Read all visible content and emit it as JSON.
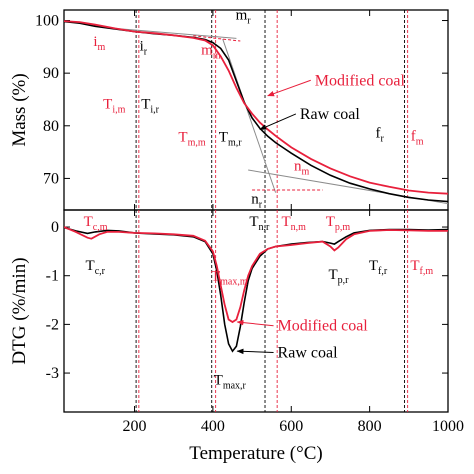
{
  "colors": {
    "raw": "#000000",
    "modified": "#e8203c",
    "fit": "#8c8c8c"
  },
  "chart_data": [
    {
      "type": "line",
      "panel": "top",
      "xlabel": "",
      "ylabel": "Mass (%)",
      "xlim": [
        20,
        1000
      ],
      "ylim": [
        64,
        102
      ],
      "yticks": [
        70,
        80,
        90,
        100
      ],
      "series": [
        {
          "name": "Raw coal",
          "color_key": "raw",
          "x": [
            20,
            60,
            100,
            150,
            200,
            250,
            300,
            350,
            380,
            400,
            420,
            440,
            460,
            480,
            500,
            520,
            540,
            560,
            580,
            600,
            650,
            700,
            750,
            800,
            850,
            900,
            950,
            1000
          ],
          "y": [
            99.8,
            99.5,
            98.9,
            98.4,
            97.9,
            97.5,
            97.2,
            96.8,
            96.4,
            95.8,
            94.7,
            92.5,
            88.5,
            84.5,
            81.5,
            79.5,
            78.0,
            76.8,
            75.8,
            74.8,
            72.5,
            70.6,
            69.1,
            68.0,
            67.1,
            66.4,
            65.9,
            65.6
          ]
        },
        {
          "name": "Modified coal",
          "color_key": "modified",
          "x": [
            20,
            60,
            100,
            150,
            200,
            250,
            300,
            350,
            380,
            400,
            420,
            440,
            460,
            480,
            500,
            520,
            540,
            560,
            580,
            600,
            650,
            700,
            750,
            800,
            850,
            900,
            950,
            1000
          ],
          "y": [
            99.9,
            99.7,
            99.2,
            98.5,
            97.9,
            97.6,
            97.2,
            96.7,
            96.2,
            95.3,
            93.2,
            90.5,
            87.2,
            84.3,
            82.3,
            80.6,
            79.3,
            78.1,
            77.0,
            75.9,
            73.7,
            71.9,
            70.4,
            69.2,
            68.4,
            67.7,
            67.3,
            67.1
          ]
        }
      ],
      "fit_lines": [
        {
          "x": [
            150,
            460
          ],
          "y": [
            98.5,
            96.6
          ]
        },
        {
          "x": [
            425,
            560
          ],
          "y": [
            96.5,
            67.3
          ]
        },
        {
          "x": [
            490,
            1000
          ],
          "y": [
            71.6,
            65.2
          ]
        }
      ],
      "modified_fit_lines": [
        {
          "x": [
            350,
            470
          ],
          "y": [
            97.1,
            96.1
          ]
        },
        {
          "x": [
            500,
            680
          ],
          "y": [
            67.8,
            67.8
          ]
        }
      ],
      "vlines": [
        {
          "x": 204,
          "color_key": "raw"
        },
        {
          "x": 211,
          "color_key": "modified"
        },
        {
          "x": 397,
          "color_key": "raw"
        },
        {
          "x": 407,
          "color_key": "modified"
        },
        {
          "x": 533,
          "color_key": "raw"
        },
        {
          "x": 564,
          "color_key": "modified"
        },
        {
          "x": 889,
          "color_key": "raw"
        },
        {
          "x": 897,
          "color_key": "modified"
        }
      ],
      "annotations": [
        {
          "main": "i",
          "sub": "m",
          "color_key": "modified",
          "x": 95,
          "y": 95.2
        },
        {
          "main": "i",
          "sub": "r",
          "color_key": "raw",
          "x": 213,
          "y": 94.3
        },
        {
          "main": "m",
          "sub": "r",
          "color_key": "raw",
          "x": 458,
          "y": 100.2
        },
        {
          "main": "m",
          "sub": "m",
          "color_key": "modified",
          "x": 370,
          "y": 93.5
        },
        {
          "main": "T",
          "sub": "i,m",
          "color_key": "modified",
          "x": 120,
          "y": 83.3
        },
        {
          "main": "T",
          "sub": "i,r",
          "color_key": "raw",
          "x": 217,
          "y": 83.3
        },
        {
          "main": "T",
          "sub": "m,m",
          "color_key": "modified",
          "x": 312,
          "y": 77.0
        },
        {
          "main": "T",
          "sub": "m,r",
          "color_key": "raw",
          "x": 415,
          "y": 77.0
        },
        {
          "main": "n",
          "sub": "m",
          "color_key": "modified",
          "x": 607,
          "y": 71.5
        },
        {
          "main": "n",
          "sub": "r",
          "color_key": "raw",
          "x": 498,
          "y": 65.2
        },
        {
          "main": "f",
          "sub": "r",
          "color_key": "raw",
          "x": 815,
          "y": 77.8
        },
        {
          "main": "f",
          "sub": "m",
          "color_key": "modified",
          "x": 905,
          "y": 77.2
        }
      ],
      "legend_labels": [
        {
          "text": "Modified coal",
          "color_key": "modified",
          "x": 660,
          "y": 87.7,
          "arrow_x": 540,
          "arrow_y": 85.7
        },
        {
          "text": "Raw coal",
          "color_key": "raw",
          "x": 622,
          "y": 81.3,
          "arrow_x": 520,
          "arrow_y": 79.3
        }
      ]
    },
    {
      "type": "line",
      "panel": "bottom",
      "xlabel": "Temperature (°C)",
      "ylabel": "DTG (%/min)",
      "xlim": [
        20,
        1000
      ],
      "ylim": [
        -3.8,
        0.35
      ],
      "xticks": [
        200,
        400,
        600,
        800,
        1000
      ],
      "yticks": [
        0,
        -1,
        -2,
        -3
      ],
      "ytick_labels": [
        "0",
        "-1",
        "-2",
        "-3"
      ],
      "series": [
        {
          "name": "Raw coal",
          "color_key": "raw",
          "x": [
            20,
            50,
            80,
            100,
            130,
            160,
            200,
            250,
            300,
            350,
            380,
            400,
            410,
            420,
            430,
            440,
            450,
            460,
            470,
            480,
            490,
            500,
            520,
            540,
            560,
            600,
            640,
            680,
            700,
            710,
            720,
            740,
            760,
            800,
            850,
            900,
            950,
            1000
          ],
          "y": [
            -0.01,
            -0.08,
            -0.13,
            -0.1,
            -0.07,
            -0.08,
            -0.12,
            -0.14,
            -0.16,
            -0.2,
            -0.3,
            -0.55,
            -0.9,
            -1.4,
            -2.0,
            -2.4,
            -2.55,
            -2.45,
            -2.05,
            -1.55,
            -1.1,
            -0.85,
            -0.6,
            -0.45,
            -0.4,
            -0.35,
            -0.32,
            -0.3,
            -0.33,
            -0.35,
            -0.3,
            -0.2,
            -0.12,
            -0.07,
            -0.05,
            -0.05,
            -0.06,
            -0.05
          ]
        },
        {
          "name": "Modified coal",
          "color_key": "modified",
          "x": [
            20,
            50,
            80,
            90,
            110,
            130,
            160,
            200,
            250,
            300,
            350,
            380,
            400,
            410,
            420,
            430,
            440,
            450,
            460,
            470,
            480,
            490,
            500,
            520,
            540,
            560,
            600,
            640,
            680,
            700,
            710,
            720,
            740,
            760,
            800,
            850,
            900,
            950,
            1000
          ],
          "y": [
            0.0,
            -0.1,
            -0.22,
            -0.24,
            -0.15,
            -0.1,
            -0.1,
            -0.12,
            -0.13,
            -0.15,
            -0.18,
            -0.28,
            -0.5,
            -0.8,
            -1.2,
            -1.6,
            -1.9,
            -1.95,
            -1.9,
            -1.65,
            -1.3,
            -1.0,
            -0.8,
            -0.55,
            -0.45,
            -0.4,
            -0.37,
            -0.33,
            -0.3,
            -0.4,
            -0.48,
            -0.42,
            -0.25,
            -0.15,
            -0.08,
            -0.06,
            -0.07,
            -0.08,
            -0.08
          ]
        }
      ],
      "vlines": [
        {
          "x": 204,
          "color_key": "raw"
        },
        {
          "x": 211,
          "color_key": "modified"
        },
        {
          "x": 397,
          "color_key": "raw"
        },
        {
          "x": 407,
          "color_key": "modified"
        },
        {
          "x": 533,
          "color_key": "raw"
        },
        {
          "x": 564,
          "color_key": "modified"
        },
        {
          "x": 889,
          "color_key": "raw"
        },
        {
          "x": 897,
          "color_key": "modified"
        }
      ],
      "annotations": [
        {
          "main": "T",
          "sub": "c,m",
          "color_key": "modified",
          "x": 70,
          "y": 0.02
        },
        {
          "main": "T",
          "sub": "c,r",
          "color_key": "raw",
          "x": 75,
          "y": -0.88
        },
        {
          "main": "T",
          "sub": "n,r",
          "color_key": "raw",
          "x": 493,
          "y": 0.02
        },
        {
          "main": "T",
          "sub": "n,m",
          "color_key": "modified",
          "x": 575,
          "y": 0.02
        },
        {
          "main": "T",
          "sub": "p,m",
          "color_key": "modified",
          "x": 688,
          "y": 0.02
        },
        {
          "main": "T",
          "sub": "p,r",
          "color_key": "raw",
          "x": 695,
          "y": -1.07
        },
        {
          "main": "T",
          "sub": "f,r",
          "color_key": "raw",
          "x": 798,
          "y": -0.88
        },
        {
          "main": "T",
          "sub": "f,m",
          "color_key": "modified",
          "x": 904,
          "y": -0.88
        },
        {
          "main": "T",
          "sub": "max,m",
          "color_key": "modified",
          "x": 395,
          "y": -1.1
        },
        {
          "main": "T",
          "sub": "max,r",
          "color_key": "raw",
          "x": 402,
          "y": -3.23
        }
      ],
      "legend_labels": [
        {
          "text": "Modified coal",
          "color_key": "modified",
          "x": 565,
          "y": -2.13,
          "arrow_x": 462,
          "arrow_y": -1.95
        },
        {
          "text": "Raw coal",
          "color_key": "raw",
          "x": 565,
          "y": -2.68,
          "arrow_x": 462,
          "arrow_y": -2.55
        }
      ]
    }
  ]
}
